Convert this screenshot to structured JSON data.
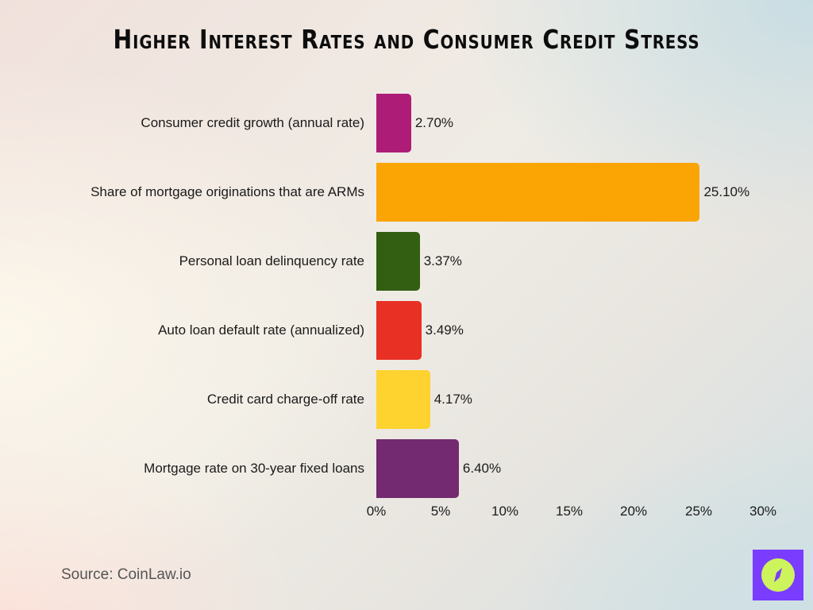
{
  "header": {
    "title": "Higher Interest Rates and Consumer Credit Stress"
  },
  "chart_data": {
    "type": "bar",
    "orientation": "horizontal",
    "title": "Higher Interest Rates and Consumer Credit Stress",
    "xlabel": "",
    "ylabel": "",
    "xlim": [
      0,
      30
    ],
    "x_ticks": [
      "0%",
      "5%",
      "10%",
      "15%",
      "20%",
      "25%",
      "30%"
    ],
    "grid": false,
    "legend": "none",
    "categories": [
      "Consumer credit growth (annual rate)",
      "Share of mortgage originations that are ARMs",
      "Personal loan delinquency rate",
      "Auto loan default rate (annualized)",
      "Credit card charge-off rate",
      "Mortgage rate on 30-year fixed loans"
    ],
    "values": [
      2.7,
      25.1,
      3.37,
      3.49,
      4.17,
      6.4
    ],
    "value_labels": [
      "2.70%",
      "25.10%",
      "3.37%",
      "3.49%",
      "4.17%",
      "6.40%"
    ],
    "colors": [
      "#ad1d78",
      "#fba505",
      "#335f12",
      "#e83024",
      "#fed22f",
      "#732a70"
    ]
  },
  "bars": [
    {
      "label": "Consumer credit growth (annual rate)",
      "value": 2.7,
      "value_label": "2.70%",
      "color": "#ad1d78"
    },
    {
      "label": "Share of mortgage originations that are ARMs",
      "value": 25.1,
      "value_label": "25.10%",
      "color": "#fba505"
    },
    {
      "label": "Personal loan delinquency rate",
      "value": 3.37,
      "value_label": "3.37%",
      "color": "#335f12"
    },
    {
      "label": "Auto loan default rate (annualized)",
      "value": 3.49,
      "value_label": "3.49%",
      "color": "#e83024"
    },
    {
      "label": "Credit card charge-off rate",
      "value": 4.17,
      "value_label": "4.17%",
      "color": "#fed22f"
    },
    {
      "label": "Mortgage rate on 30-year fixed loans",
      "value": 6.4,
      "value_label": "6.40%",
      "color": "#732a70"
    }
  ],
  "axis": {
    "ticks": [
      "0%",
      "5%",
      "10%",
      "15%",
      "20%",
      "25%",
      "30%"
    ]
  },
  "footer": {
    "source": "Source: CoinLaw.io",
    "logo_icon": "compass-icon",
    "logo_bg": "#7a3cff",
    "logo_fg": "#cdf35d"
  }
}
